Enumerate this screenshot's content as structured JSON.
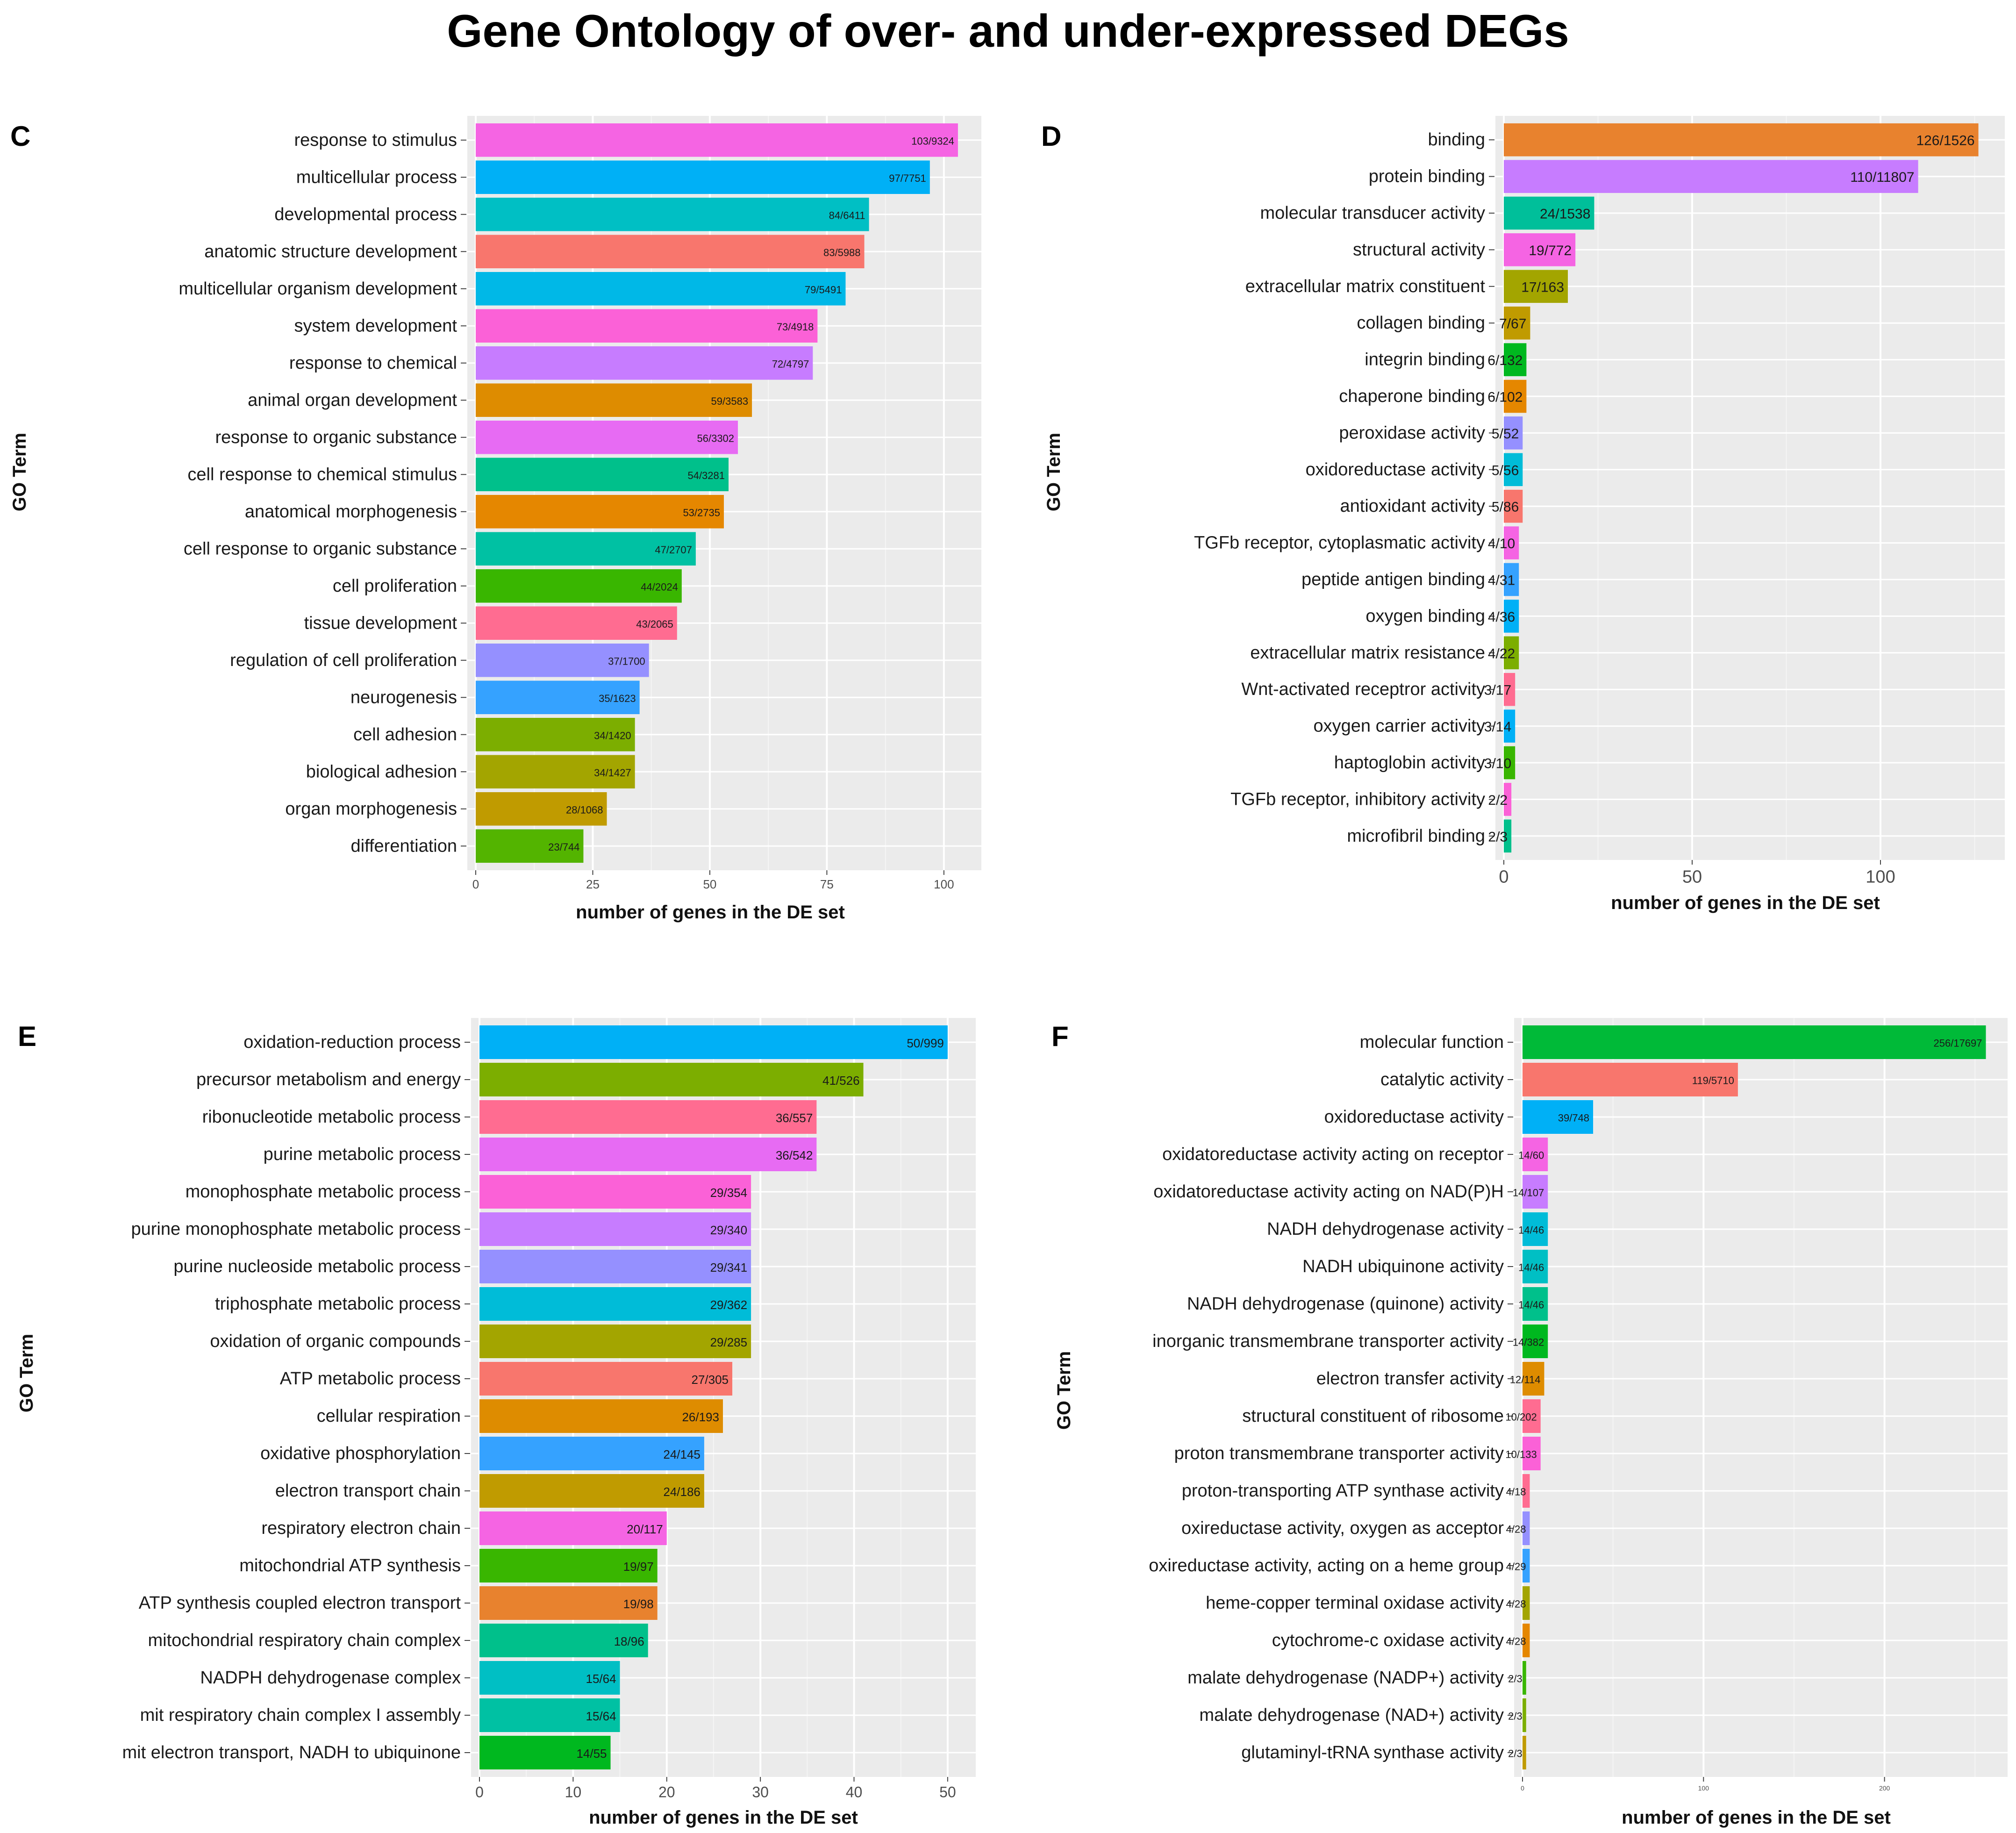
{
  "title": "Gene Ontology of over- and under-expressed DEGs",
  "chart_data": [
    {
      "panel": "C",
      "type": "bar",
      "orientation": "horizontal",
      "ylabel": "GO Term",
      "xlabel": "number of genes in the DE set",
      "xlim": [
        0,
        108
      ],
      "xticks": [
        0,
        25,
        50,
        75,
        100
      ],
      "grid": true,
      "categories": [
        "response to stimulus",
        "multicellular process",
        "developmental process",
        "anatomic structure development",
        "multicellular organism development",
        "system development",
        "response to chemical",
        "animal organ development",
        "response to organic substance",
        "cell response to chemical stimulus",
        "anatomical morphogenesis",
        "cell response to organic substance",
        "cell proliferation",
        "tissue development",
        "regulation of cell proliferation",
        "neurogenesis",
        "cell adhesion",
        "biological adhesion",
        "organ morphogenesis",
        "differentiation"
      ],
      "values": [
        103,
        97,
        84,
        83,
        79,
        73,
        72,
        59,
        56,
        54,
        53,
        47,
        44,
        43,
        37,
        35,
        34,
        34,
        28,
        23
      ],
      "labels": [
        "103/9324",
        "97/7751",
        "84/6411",
        "83/5988",
        "79/5491",
        "73/4918",
        "72/4797",
        "59/3583",
        "56/3302",
        "54/3281",
        "53/2735",
        "47/2707",
        "44/2024",
        "43/2065",
        "37/1700",
        "35/1623",
        "34/1420",
        "34/1427",
        "28/1068",
        "23/744"
      ],
      "colors": [
        "#f564e3",
        "#00b0f6",
        "#00bfc4",
        "#f8766d",
        "#00b8e7",
        "#fb61d7",
        "#c77cff",
        "#de8c00",
        "#e76bf3",
        "#00c08b",
        "#e58700",
        "#00c1a3",
        "#39b600",
        "#ff6c91",
        "#9590ff",
        "#35a2ff",
        "#7cae00",
        "#a3a500",
        "#c09b00",
        "#53b400"
      ]
    },
    {
      "panel": "D",
      "type": "bar",
      "orientation": "horizontal",
      "ylabel": "GO Term",
      "xlabel": "number of genes in the DE set",
      "xlim": [
        0,
        133
      ],
      "xticks": [
        0,
        50,
        100
      ],
      "grid": true,
      "categories": [
        "binding",
        "protein binding",
        "molecular transducer activity",
        "structural activity",
        "extracellular matrix constituent",
        "collagen binding",
        "integrin binding",
        "chaperone binding",
        "peroxidase activity",
        "oxidoreductase activity",
        "antioxidant activity",
        "TGFb receptor, cytoplasmatic activity",
        "peptide antigen binding",
        "oxygen binding",
        "extracellular matrix resistance",
        "Wnt-activated receptror activity",
        "oxygen carrier activity",
        "haptoglobin activity",
        "TGFb receptor, inhibitory activity",
        "microfibril binding"
      ],
      "values": [
        126,
        110,
        24,
        19,
        17,
        7,
        6,
        6,
        5,
        5,
        5,
        4,
        4,
        4,
        4,
        3,
        3,
        3,
        2,
        2
      ],
      "labels": [
        "126/1526",
        "110/11807",
        "24/1538",
        "19/772",
        "17/163",
        "7/67",
        "6/132",
        "6/102",
        "5/52",
        "5/56",
        "5/86",
        "4/10",
        "4/31",
        "4/36",
        "4/22",
        "3/17",
        "3/14",
        "3/10",
        "2/2",
        "2/3"
      ],
      "colors": [
        "#e8822e",
        "#c77cff",
        "#00bf9a",
        "#f564e3",
        "#a3a500",
        "#c09b00",
        "#00b81f",
        "#e58700",
        "#9590ff",
        "#00bcd8",
        "#f8766d",
        "#f564e3",
        "#35a2ff",
        "#00b0f6",
        "#7cae00",
        "#ff6c91",
        "#00b0f6",
        "#39b600",
        "#fb61d7",
        "#00c08b"
      ]
    },
    {
      "panel": "E",
      "type": "bar",
      "orientation": "horizontal",
      "ylabel": "GO Term",
      "xlabel": "number of genes in the DE set",
      "xlim": [
        0,
        53
      ],
      "xticks": [
        0,
        10,
        20,
        30,
        40,
        50
      ],
      "grid": true,
      "categories": [
        "oxidation-reduction process",
        "precursor metabolism and energy",
        "ribonucleotide metabolic process",
        "purine metabolic process",
        "monophosphate metabolic process",
        "purine monophosphate metabolic process",
        "purine nucleoside metabolic process",
        "triphosphate metabolic process",
        "oxidation of organic compounds",
        "ATP metabolic process",
        "cellular respiration",
        "oxidative phosphorylation",
        "electron transport chain",
        "respiratory electron chain",
        "mitochondrial ATP synthesis",
        "ATP synthesis coupled electron transport",
        "mitochondrial respiratory chain complex",
        "NADPH dehydrogenase complex",
        "mit respiratory chain complex I assembly",
        "mit electron transport, NADH to ubiquinone"
      ],
      "values": [
        50,
        41,
        36,
        36,
        29,
        29,
        29,
        29,
        29,
        27,
        26,
        24,
        24,
        20,
        19,
        19,
        18,
        15,
        15,
        14
      ],
      "labels": [
        "50/999",
        "41/526",
        "36/557",
        "36/542",
        "29/354",
        "29/340",
        "29/341",
        "29/362",
        "29/285",
        "27/305",
        "26/193",
        "24/145",
        "24/186",
        "20/117",
        "19/97",
        "19/98",
        "18/96",
        "15/64",
        "15/64",
        "14/55"
      ],
      "colors": [
        "#00b0f6",
        "#7cae00",
        "#ff6c91",
        "#e76bf3",
        "#fb61d7",
        "#c77cff",
        "#9590ff",
        "#00bcd8",
        "#a3a500",
        "#f8766d",
        "#de8c00",
        "#35a2ff",
        "#c09b00",
        "#f564e3",
        "#39b600",
        "#e8822e",
        "#00c08b",
        "#00bfc4",
        "#00c1a3",
        "#00b81f"
      ]
    },
    {
      "panel": "F",
      "type": "bar",
      "orientation": "horizontal",
      "ylabel": "GO Term",
      "xlabel": "number of genes in the DE set",
      "xlim": [
        0,
        268
      ],
      "xticks": [
        0,
        100,
        200
      ],
      "grid": true,
      "categories": [
        "molecular function",
        "catalytic activity",
        "oxidoreductase activity",
        "oxidatoreductase activity acting on receptor",
        "oxidatoreductase activity acting on NAD(P)H",
        "NADH dehydrogenase activity",
        "NADH ubiquinone activity",
        "NADH dehydrogenase (quinone) activity",
        "inorganic transmembrane transporter activity",
        "electron transfer activity",
        "structural constituent of ribosome",
        "proton transmembrane transporter activity",
        "proton-transporting ATP synthase activity",
        "oxireductase activity, oxygen as acceptor",
        "oxireductase activity, acting on a heme group",
        "heme-copper terminal oxidase activity",
        "cytochrome-c oxidase activity",
        "malate dehydrogenase (NADP+) activity",
        "malate dehydrogenase (NAD+) activity",
        "glutaminyl-tRNA synthase activity"
      ],
      "values": [
        256,
        119,
        39,
        14,
        14,
        14,
        14,
        14,
        14,
        12,
        10,
        10,
        4,
        4,
        4,
        4,
        4,
        2,
        2,
        2
      ],
      "labels": [
        "256/17697",
        "119/5710",
        "39/748",
        "14/60",
        "14/107",
        "14/46",
        "14/46",
        "14/46",
        "14/382",
        "12/114",
        "10/202",
        "10/133",
        "4/18",
        "4/28",
        "4/29",
        "4/28",
        "4/28",
        "2/3",
        "2/3",
        "2/3"
      ],
      "colors": [
        "#00ba38",
        "#f8766d",
        "#00b0f6",
        "#f564e3",
        "#c77cff",
        "#00bcd8",
        "#00bfc4",
        "#00c08b",
        "#00b81f",
        "#de8c00",
        "#ff6c91",
        "#fb61d7",
        "#ff6c91",
        "#9590ff",
        "#35a2ff",
        "#a3a500",
        "#e58700",
        "#39b600",
        "#7cae00",
        "#c09b00"
      ]
    }
  ]
}
